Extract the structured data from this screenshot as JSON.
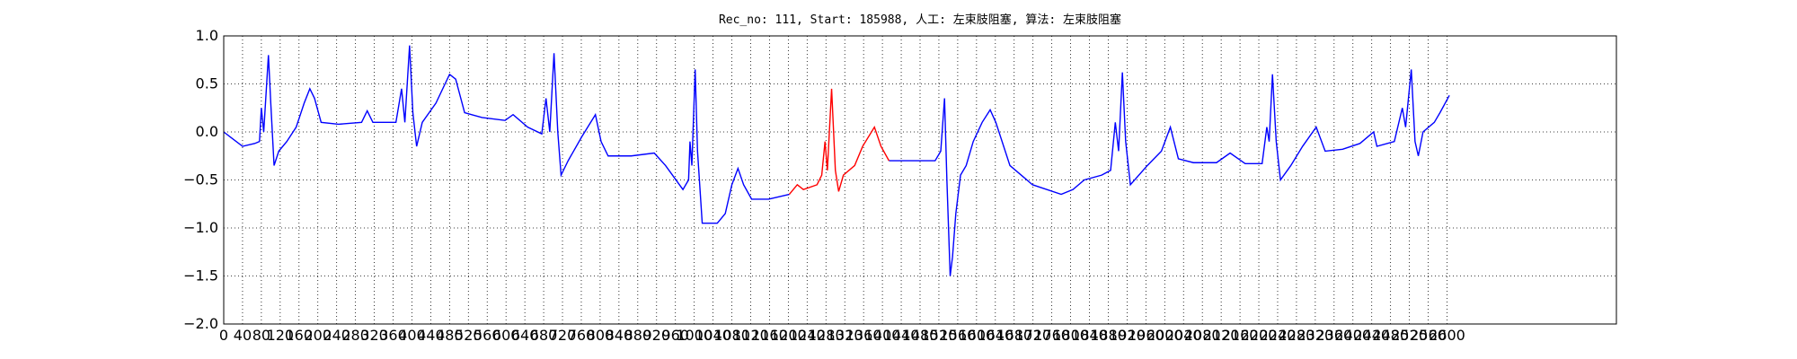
{
  "chart_data": {
    "type": "line",
    "title": "Rec_no: 111, Start: 185988, 人工: 左束肢阻塞, 算法: 左束肢阻塞",
    "x": [
      0,
      40,
      66,
      76,
      80,
      85,
      95,
      100,
      107,
      117,
      134,
      154,
      171,
      183,
      193,
      207,
      244,
      293,
      305,
      317,
      366,
      378,
      385,
      395,
      402,
      410,
      422,
      451,
      480,
      493,
      512,
      549,
      598,
      615,
      646,
      676,
      685,
      693,
      702,
      710,
      717,
      732,
      761,
      790,
      802,
      817,
      866,
      915,
      939,
      976,
      988,
      991,
      995,
      1002,
      1007,
      1017,
      1049,
      1066,
      1080,
      1093,
      1105,
      1122,
      1158,
      1202,
      1219,
      1232,
      1261,
      1271,
      1278,
      1283,
      1292,
      1300,
      1307,
      1317,
      1341,
      1358,
      1383,
      1397,
      1414,
      1476,
      1512,
      1524,
      1532,
      1537,
      1544,
      1549,
      1556,
      1566,
      1578,
      1593,
      1612,
      1629,
      1641,
      1671,
      1719,
      1780,
      1805,
      1829,
      1866,
      1885,
      1895,
      1902,
      1910,
      1917,
      1927,
      1963,
      1993,
      2012,
      2029,
      2061,
      2110,
      2139,
      2171,
      2207,
      2217,
      2222,
      2229,
      2237,
      2246,
      2268,
      2293,
      2322,
      2341,
      2378,
      2415,
      2444,
      2451,
      2488,
      2505,
      2512,
      2524,
      2532,
      2539,
      2549,
      2573,
      2585,
      2605
    ],
    "series": [
      {
        "color": "#0000ff",
        "values": [
          0.0,
          -0.15,
          -0.12,
          -0.1,
          0.25,
          0.0,
          0.8,
          0.3,
          -0.35,
          -0.2,
          -0.1,
          0.05,
          0.3,
          0.45,
          0.35,
          0.1,
          0.08,
          0.1,
          0.22,
          0.1,
          0.1,
          0.45,
          0.1,
          0.9,
          0.2,
          -0.15,
          0.1,
          0.3,
          0.6,
          0.55,
          0.2,
          0.15,
          0.12,
          0.18,
          0.05,
          -0.02,
          0.35,
          0.0,
          0.82,
          0.0,
          -0.45,
          -0.3,
          -0.05,
          0.18,
          -0.1,
          -0.25,
          -0.25,
          -0.22,
          -0.35,
          -0.6,
          -0.5,
          -0.1,
          -0.35,
          0.65,
          -0.2,
          -0.95,
          -0.95,
          -0.85,
          -0.55,
          -0.38,
          -0.55,
          -0.7,
          -0.7,
          -0.65,
          null,
          null,
          null,
          null,
          null,
          null,
          null,
          null,
          null,
          null,
          null,
          null,
          null,
          null,
          -0.3,
          -0.3,
          -0.3,
          -0.2,
          0.35,
          -0.5,
          -1.5,
          -1.3,
          -0.85,
          -0.45,
          -0.35,
          -0.1,
          0.1,
          0.23,
          0.1,
          -0.35,
          -0.55,
          -0.65,
          -0.6,
          -0.5,
          -0.45,
          -0.4,
          0.1,
          -0.2,
          0.62,
          -0.1,
          -0.55,
          -0.35,
          -0.2,
          0.05,
          -0.28,
          -0.32,
          -0.32,
          -0.22,
          -0.33,
          -0.33,
          0.05,
          -0.1,
          0.6,
          -0.1,
          -0.5,
          -0.35,
          -0.15,
          0.05,
          -0.2,
          -0.18,
          -0.12,
          0.0,
          -0.15,
          -0.1,
          0.25,
          0.05,
          0.65,
          -0.1,
          -0.25,
          0.0,
          0.1,
          0.2,
          0.38
        ]
      },
      {
        "color": "#ff0000",
        "values": [
          null,
          null,
          null,
          null,
          null,
          null,
          null,
          null,
          null,
          null,
          null,
          null,
          null,
          null,
          null,
          null,
          null,
          null,
          null,
          null,
          null,
          null,
          null,
          null,
          null,
          null,
          null,
          null,
          null,
          null,
          null,
          null,
          null,
          null,
          null,
          null,
          null,
          null,
          null,
          null,
          null,
          null,
          null,
          null,
          null,
          null,
          null,
          null,
          null,
          null,
          null,
          null,
          null,
          null,
          null,
          null,
          null,
          null,
          null,
          null,
          null,
          null,
          null,
          -0.65,
          -0.55,
          -0.6,
          -0.55,
          -0.45,
          -0.1,
          -0.4,
          0.45,
          -0.4,
          -0.62,
          -0.45,
          -0.35,
          -0.15,
          0.05,
          -0.15,
          -0.3,
          null,
          null,
          null,
          null,
          null,
          null,
          null,
          null,
          null,
          null,
          null,
          null,
          null,
          null,
          null,
          null,
          null,
          null,
          null,
          null,
          null,
          null,
          null,
          null,
          null,
          null,
          null,
          null,
          null,
          null,
          null,
          null,
          null,
          null,
          null,
          null,
          null,
          null,
          null,
          null,
          null,
          null,
          null,
          null,
          null,
          null,
          null,
          null,
          null,
          null,
          null,
          null,
          null,
          null,
          null,
          null,
          null,
          null
        ]
      }
    ],
    "xlim": [
      0,
      2960
    ],
    "xticks": [
      0,
      40,
      80,
      120,
      160,
      200,
      240,
      280,
      320,
      360,
      400,
      440,
      480,
      520,
      560,
      600,
      640,
      680,
      720,
      760,
      800,
      840,
      880,
      920,
      960,
      1000,
      1040,
      1080,
      1120,
      1160,
      1200,
      1240,
      1280,
      1320,
      1360,
      1400,
      1440,
      1480,
      1520,
      1560,
      1600,
      1640,
      1680,
      1720,
      1760,
      1800,
      1840,
      1880,
      1920,
      1960,
      2000,
      2040,
      2080,
      2120,
      2160,
      2200,
      2240,
      2280,
      2320,
      2360,
      2400,
      2440,
      2480,
      2520,
      2560,
      2600
    ],
    "ylim": [
      -2.0,
      1.0
    ],
    "yticks": [
      {
        "value": -2.0,
        "label": "−2.0"
      },
      {
        "value": -1.5,
        "label": "−1.5"
      },
      {
        "value": -1.0,
        "label": "−1.0"
      },
      {
        "value": -0.5,
        "label": "−0.5"
      },
      {
        "value": 0.0,
        "label": "0.0"
      },
      {
        "value": 0.5,
        "label": "0.5"
      },
      {
        "value": 1.0,
        "label": "1.0"
      }
    ],
    "grid": true
  }
}
